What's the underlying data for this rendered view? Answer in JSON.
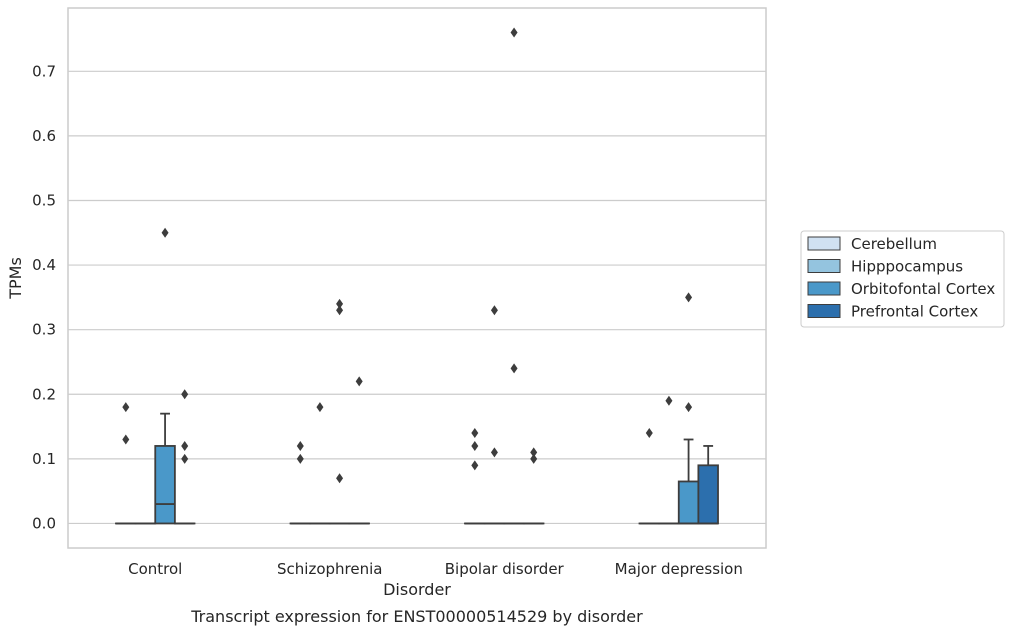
{
  "chart_data": {
    "type": "box",
    "xlabel": "Disorder",
    "ylabel": "TPMs",
    "caption": "Transcript expression for ENST00000514529 by disorder",
    "ylim": [
      -0.038,
      0.798
    ],
    "yticks": [
      "0.0",
      "0.1",
      "0.2",
      "0.3",
      "0.4",
      "0.5",
      "0.6",
      "0.7"
    ],
    "ytick_values": [
      0,
      0.1,
      0.2,
      0.3,
      0.4,
      0.5,
      0.6,
      0.7
    ],
    "grid": "horizontal",
    "legend_position": "right",
    "categories": [
      "Control",
      "Schizophrenia",
      "Bipolar disorder",
      "Major depression"
    ],
    "series": [
      {
        "name": "Cerebellum",
        "color": "#d0e1f2",
        "boxes": [
          {
            "q1": 0,
            "median": 0,
            "q3": 0,
            "whisker_low": 0,
            "whisker_high": 0,
            "outliers": [
              0.18,
              0.13
            ]
          },
          {
            "q1": 0,
            "median": 0,
            "q3": 0,
            "whisker_low": 0,
            "whisker_high": 0,
            "outliers": [
              0.12,
              0.1
            ]
          },
          {
            "q1": 0,
            "median": 0,
            "q3": 0,
            "whisker_low": 0,
            "whisker_high": 0,
            "outliers": [
              0.14,
              0.12,
              0.09
            ]
          },
          {
            "q1": 0,
            "median": 0,
            "q3": 0,
            "whisker_low": 0,
            "whisker_high": 0,
            "outliers": [
              0.14
            ]
          }
        ]
      },
      {
        "name": "Hipppocampus",
        "color": "#94c4df",
        "boxes": [
          {
            "q1": 0,
            "median": 0,
            "q3": 0,
            "whisker_low": 0,
            "whisker_high": 0,
            "outliers": []
          },
          {
            "q1": 0,
            "median": 0,
            "q3": 0,
            "whisker_low": 0,
            "whisker_high": 0,
            "outliers": [
              0.18
            ]
          },
          {
            "q1": 0,
            "median": 0,
            "q3": 0,
            "whisker_low": 0,
            "whisker_high": 0,
            "outliers": [
              0.33,
              0.11
            ]
          },
          {
            "q1": 0,
            "median": 0,
            "q3": 0,
            "whisker_low": 0,
            "whisker_high": 0,
            "outliers": [
              0.19
            ]
          }
        ]
      },
      {
        "name": "Orbitofontal Cortex",
        "color": "#4a98c9",
        "boxes": [
          {
            "q1": 0,
            "median": 0.03,
            "q3": 0.12,
            "whisker_low": 0,
            "whisker_high": 0.17,
            "outliers": [
              0.45
            ]
          },
          {
            "q1": 0,
            "median": 0,
            "q3": 0,
            "whisker_low": 0,
            "whisker_high": 0,
            "outliers": [
              0.34,
              0.33,
              0.07
            ]
          },
          {
            "q1": 0,
            "median": 0,
            "q3": 0,
            "whisker_low": 0,
            "whisker_high": 0,
            "outliers": [
              0.76,
              0.24
            ]
          },
          {
            "q1": 0,
            "median": 0,
            "q3": 0.065,
            "whisker_low": 0,
            "whisker_high": 0.13,
            "outliers": [
              0.35,
              0.18
            ]
          }
        ]
      },
      {
        "name": "Prefrontal Cortex",
        "color": "#2c6fad",
        "boxes": [
          {
            "q1": 0,
            "median": 0,
            "q3": 0,
            "whisker_low": 0,
            "whisker_high": 0,
            "outliers": [
              0.2,
              0.12,
              0.1
            ]
          },
          {
            "q1": 0,
            "median": 0,
            "q3": 0,
            "whisker_low": 0,
            "whisker_high": 0,
            "outliers": [
              0.22
            ]
          },
          {
            "q1": 0,
            "median": 0,
            "q3": 0,
            "whisker_low": 0,
            "whisker_high": 0,
            "outliers": [
              0.11,
              0.1
            ]
          },
          {
            "q1": 0,
            "median": 0,
            "q3": 0.09,
            "whisker_low": 0,
            "whisker_high": 0.12,
            "outliers": []
          }
        ]
      }
    ]
  }
}
